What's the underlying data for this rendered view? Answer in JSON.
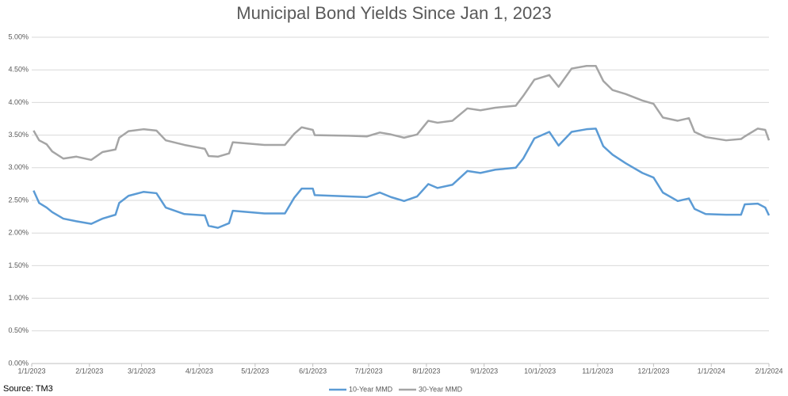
{
  "chart_data": {
    "type": "line",
    "title": "Municipal Bond Yields Since Jan 1, 2023",
    "source": "Source: TM3",
    "x": [
      "1/2/2023",
      "1/5/2023",
      "1/9/2023",
      "1/12/2023",
      "1/18/2023",
      "1/25/2023",
      "2/2/2023",
      "2/8/2023",
      "2/15/2023",
      "2/17/2023",
      "2/22/2023",
      "3/2/2023",
      "3/9/2023",
      "3/14/2023",
      "3/24/2023",
      "4/4/2023",
      "4/6/2023",
      "4/11/2023",
      "4/17/2023",
      "4/19/2023",
      "5/6/2023",
      "5/17/2023",
      "5/22/2023",
      "5/26/2023",
      "6/1/2023",
      "6/2/2023",
      "6/20/2023",
      "6/30/2023",
      "7/7/2023",
      "7/13/2023",
      "7/20/2023",
      "7/27/2023",
      "8/2/2023",
      "8/7/2023",
      "8/15/2023",
      "8/23/2023",
      "8/30/2023",
      "9/7/2023",
      "9/18/2023",
      "9/22/2023",
      "9/28/2023",
      "10/6/2023",
      "10/11/2023",
      "10/18/2023",
      "10/26/2023",
      "10/31/2023",
      "11/4/2023",
      "11/9/2023",
      "11/16/2023",
      "11/25/2023",
      "12/1/2023",
      "12/6/2023",
      "12/14/2023",
      "12/20/2023",
      "12/23/2023",
      "12/29/2023",
      "1/9/2024",
      "1/17/2024",
      "1/19/2024",
      "1/26/2024",
      "1/30/2024",
      "2/1/2024"
    ],
    "series": [
      {
        "name": "10-Year MMD",
        "color": "#5b9bd5",
        "values": [
          2.65,
          2.46,
          2.39,
          2.32,
          2.22,
          2.18,
          2.14,
          2.22,
          2.28,
          2.46,
          2.57,
          2.63,
          2.61,
          2.39,
          2.29,
          2.27,
          2.11,
          2.08,
          2.15,
          2.34,
          2.3,
          2.3,
          2.54,
          2.68,
          2.68,
          2.58,
          2.56,
          2.55,
          2.62,
          2.55,
          2.49,
          2.56,
          2.75,
          2.69,
          2.74,
          2.95,
          2.92,
          2.97,
          3.0,
          3.14,
          3.45,
          3.55,
          3.34,
          3.55,
          3.59,
          3.6,
          3.33,
          3.2,
          3.07,
          2.92,
          2.85,
          2.62,
          2.49,
          2.53,
          2.37,
          2.29,
          2.28,
          2.28,
          2.44,
          2.45,
          2.39,
          2.27
        ]
      },
      {
        "name": "30-Year MMD",
        "color": "#a5a5a5",
        "values": [
          3.57,
          3.42,
          3.36,
          3.25,
          3.14,
          3.17,
          3.12,
          3.24,
          3.28,
          3.46,
          3.56,
          3.59,
          3.57,
          3.42,
          3.35,
          3.29,
          3.18,
          3.17,
          3.22,
          3.39,
          3.35,
          3.35,
          3.52,
          3.62,
          3.58,
          3.5,
          3.49,
          3.48,
          3.54,
          3.51,
          3.46,
          3.51,
          3.72,
          3.69,
          3.72,
          3.91,
          3.88,
          3.92,
          3.95,
          4.1,
          4.35,
          4.42,
          4.24,
          4.52,
          4.56,
          4.56,
          4.33,
          4.19,
          4.13,
          4.03,
          3.98,
          3.77,
          3.72,
          3.76,
          3.55,
          3.47,
          3.42,
          3.44,
          3.48,
          3.6,
          3.58,
          3.42
        ]
      }
    ],
    "xlim": [
      "1/1/2023",
      "2/1/2024"
    ],
    "xticks": [
      "1/1/2023",
      "2/1/2023",
      "3/1/2023",
      "4/1/2023",
      "5/1/2023",
      "6/1/2023",
      "7/1/2023",
      "8/1/2023",
      "9/1/2023",
      "10/1/2023",
      "11/1/2023",
      "12/1/2023",
      "1/1/2024",
      "2/1/2024"
    ],
    "ylim": [
      0,
      5
    ],
    "yticks": [
      {
        "value": 0,
        "label": "0.00%"
      },
      {
        "value": 0.5,
        "label": "0.50%"
      },
      {
        "value": 1,
        "label": "1.00%"
      },
      {
        "value": 1.5,
        "label": "1.50%"
      },
      {
        "value": 2,
        "label": "2.00%"
      },
      {
        "value": 2.5,
        "label": "2.50%"
      },
      {
        "value": 3,
        "label": "3.00%"
      },
      {
        "value": 3.5,
        "label": "3.50%"
      },
      {
        "value": 4,
        "label": "4.00%"
      },
      {
        "value": 4.5,
        "label": "4.50%"
      },
      {
        "value": 5,
        "label": "5.00%"
      }
    ],
    "grid": true,
    "legend": "bottom"
  }
}
